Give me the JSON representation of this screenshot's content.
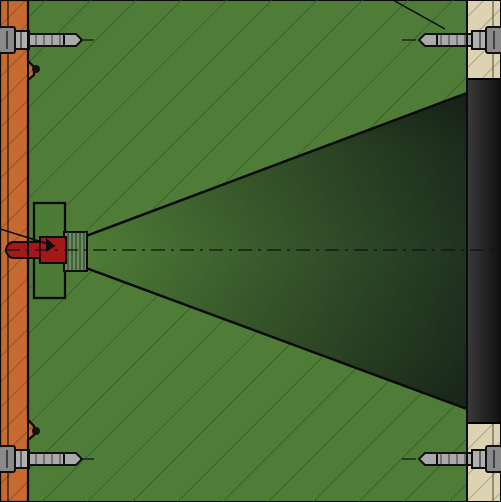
{
  "drawing": {
    "view": "cross-section",
    "colors": {
      "background": "#ffffff",
      "outline": "#0b0b0b",
      "main_body": "#4f7d37",
      "main_body_dark": "#2a3d22",
      "left_plate": "#c76a32",
      "right_plate": "#ddd3b2",
      "fastener": "#a9a9a9",
      "highlighted_pin": "#a31818",
      "center_line": "#111111",
      "hatch": "#33582a"
    },
    "components": [
      {
        "name": "main-block",
        "material": "hatched-section"
      },
      {
        "name": "left-plate",
        "material": "hatched-section"
      },
      {
        "name": "right-plate",
        "material": "hatched-section"
      },
      {
        "name": "conical-cavity"
      },
      {
        "name": "threaded-insert"
      },
      {
        "name": "boss"
      },
      {
        "name": "locating-pin",
        "highlighted": true
      },
      {
        "name": "fastener",
        "count": 4
      }
    ],
    "icons": [
      "screw-icon",
      "pin-icon",
      "centerline-icon"
    ]
  }
}
